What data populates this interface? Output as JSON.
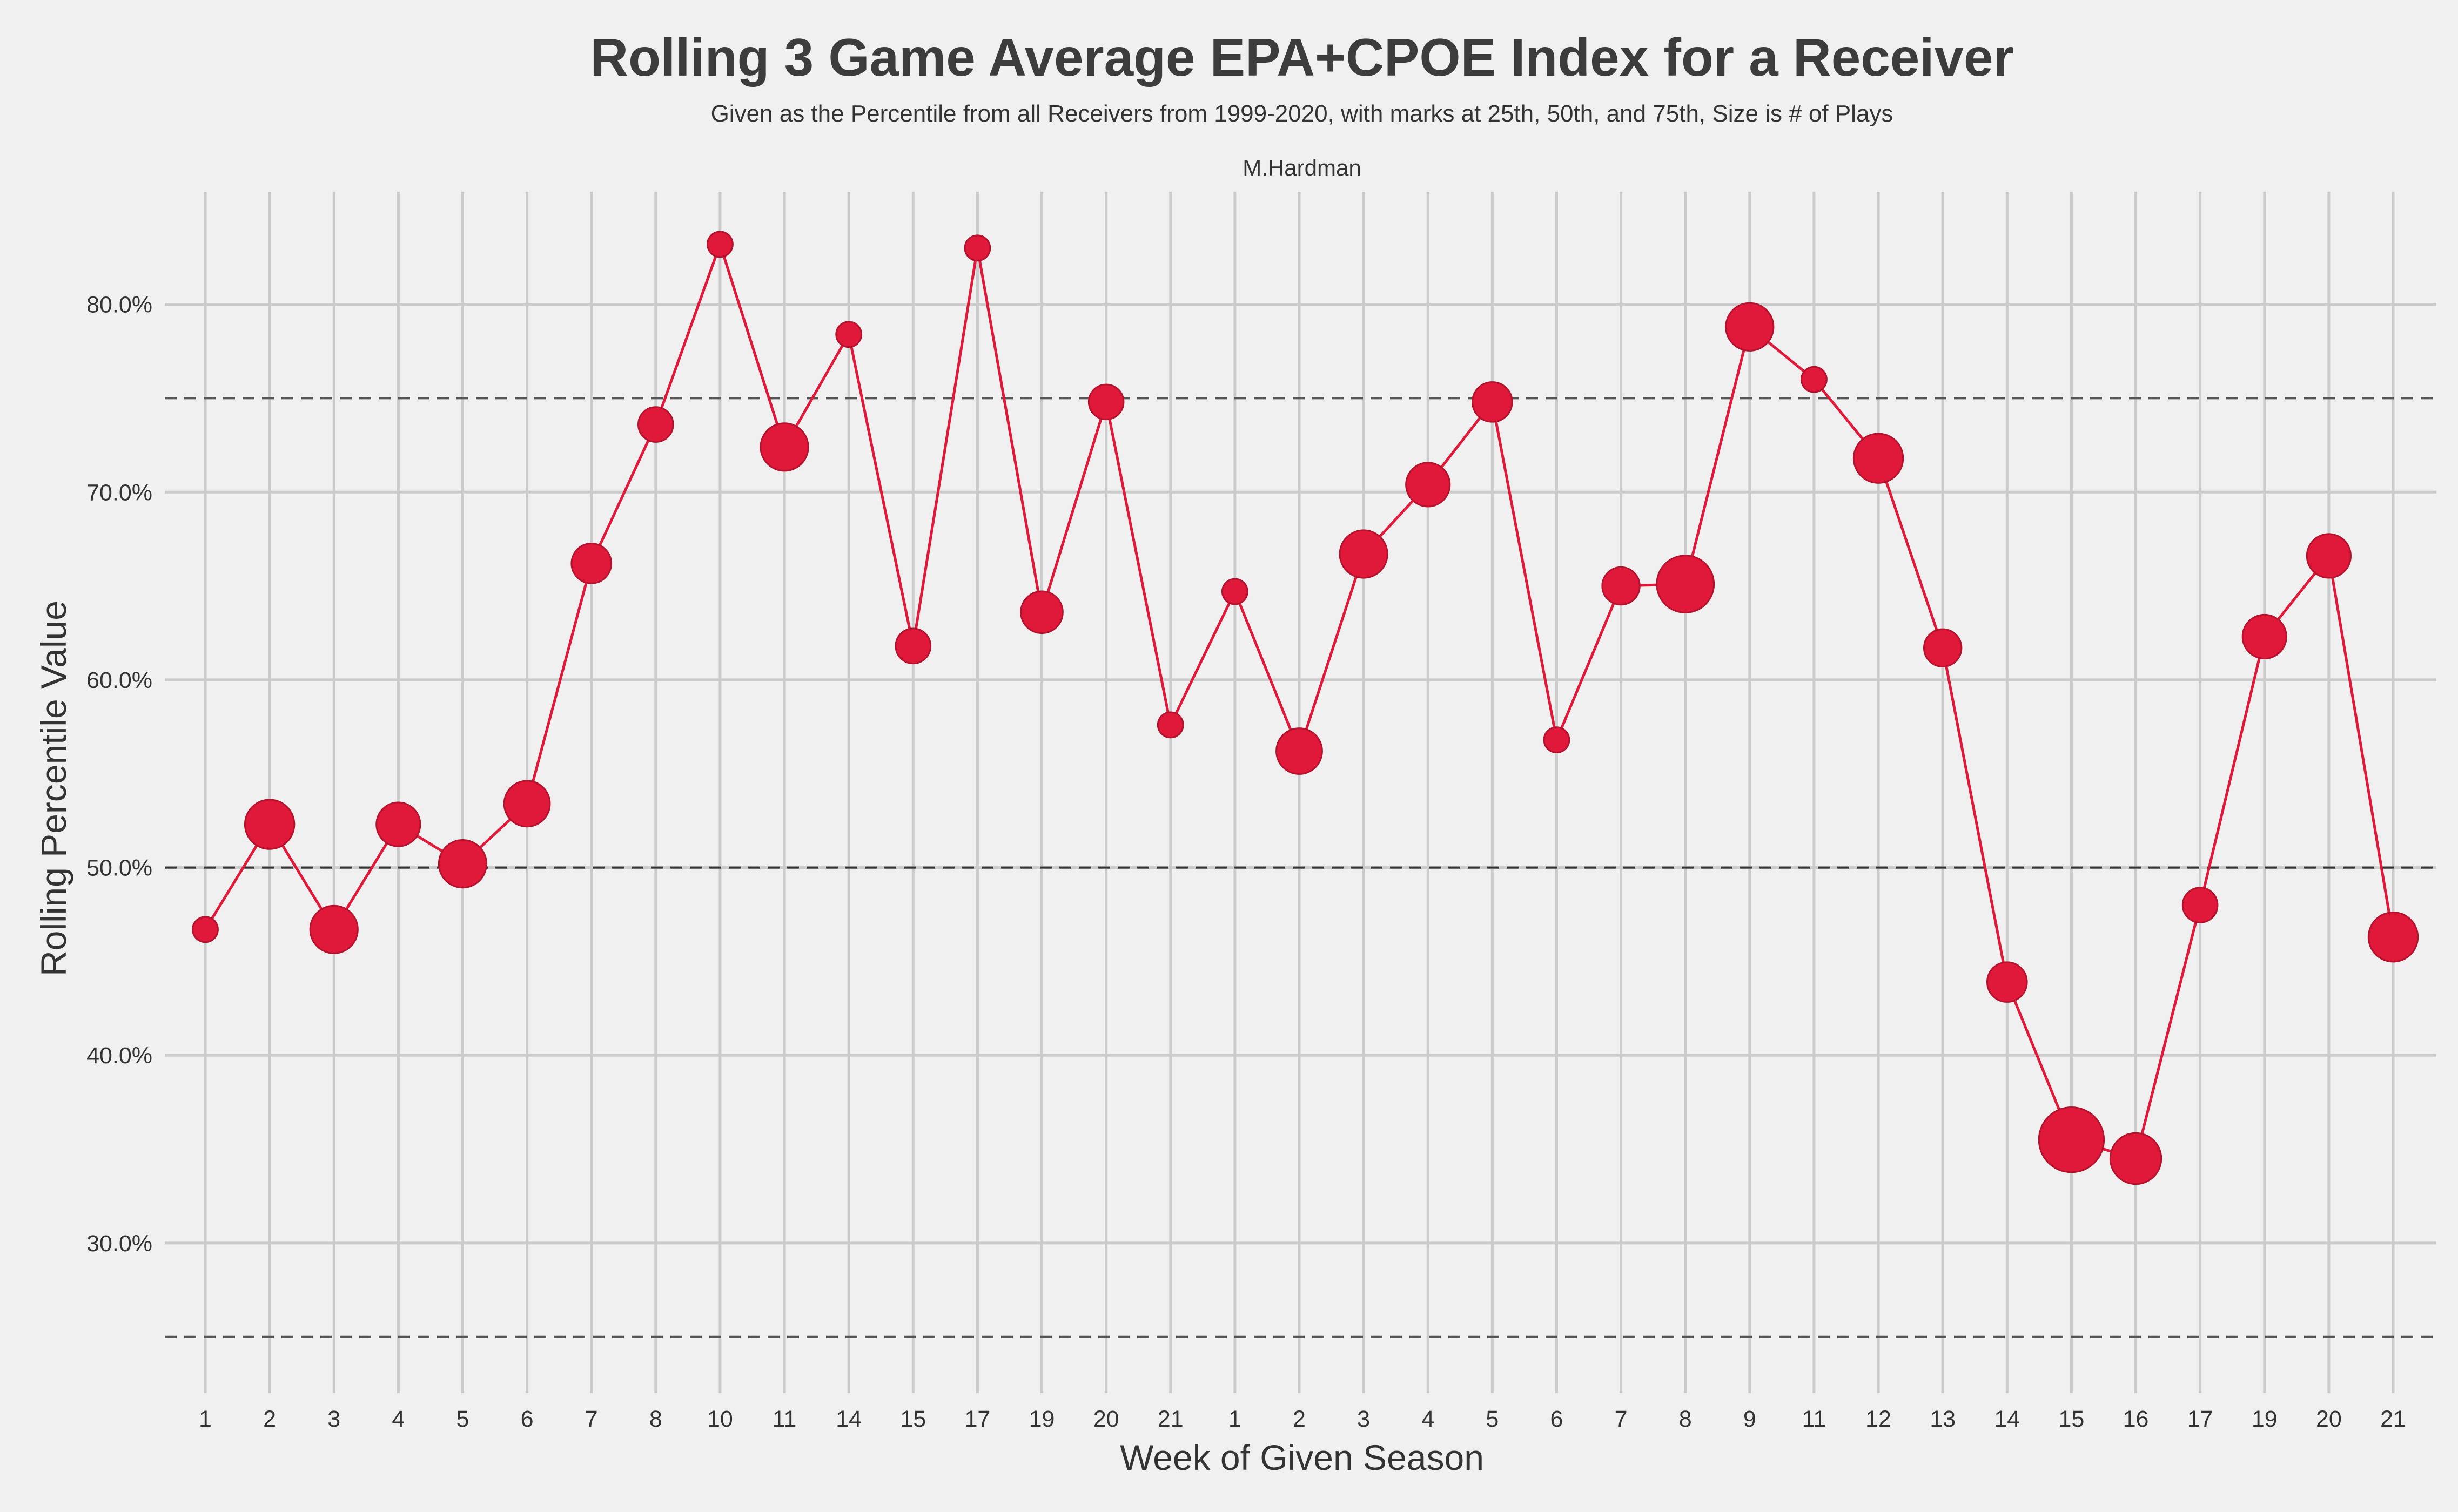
{
  "chart_data": {
    "type": "scatter",
    "title": "Rolling 3 Game Average EPA+CPOE Index for a Receiver",
    "subtitle": "Given as the Percentile from all Receivers from 1999-2020, with marks at 25th, 50th, and 75th, Size is # of Plays",
    "player": "M.Hardman",
    "xlabel": "Week of Given Season",
    "ylabel": "Rolling Percentile Value",
    "ylim": [
      22,
      86
    ],
    "yticks": [
      30,
      40,
      50,
      60,
      70,
      80
    ],
    "ytick_labels": [
      "30.0%",
      "40.0%",
      "50.0%",
      "60.0%",
      "70.0%",
      "80.0%"
    ],
    "reference_lines": [
      25,
      50,
      75
    ],
    "grid": true,
    "series": [
      {
        "color": "#e0193a",
        "x": [
          "1",
          "2",
          "3",
          "4",
          "5",
          "6",
          "7",
          "8",
          "10",
          "11",
          "14",
          "15",
          "17",
          "19",
          "20",
          "21",
          "1",
          "2",
          "3",
          "4",
          "5",
          "6",
          "7",
          "8",
          "9",
          "11",
          "12",
          "13",
          "14",
          "15",
          "16",
          "17",
          "19",
          "20",
          "21"
        ],
        "values": [
          46.7,
          52.3,
          46.7,
          52.3,
          50.2,
          53.4,
          66.2,
          73.6,
          83.2,
          72.4,
          78.4,
          61.8,
          83.0,
          63.6,
          74.8,
          57.6,
          64.7,
          56.2,
          66.7,
          70.4,
          74.8,
          56.8,
          65.0,
          65.1,
          78.8,
          76.0,
          71.8,
          61.7,
          43.9,
          35.5,
          34.5,
          48.0,
          62.3,
          66.6,
          46.3
        ],
        "plays": [
          2,
          12,
          11,
          9,
          11,
          10,
          7,
          5,
          2,
          11,
          2,
          5,
          2,
          8,
          5,
          2,
          2,
          10,
          11,
          9,
          7,
          2,
          6,
          17,
          11,
          2,
          12,
          6,
          7,
          23,
          13,
          5,
          9,
          9,
          12
        ]
      }
    ]
  }
}
